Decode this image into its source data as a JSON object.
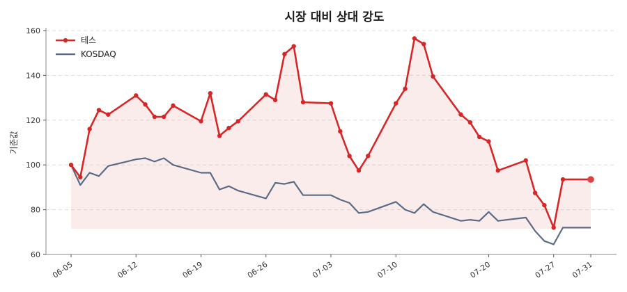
{
  "chart_data": {
    "type": "line",
    "title": "시장 대비 상대 강도",
    "xlabel": "",
    "ylabel": "기준값",
    "ylim": [
      60,
      160
    ],
    "yticks": [
      60,
      80,
      100,
      120,
      140,
      160
    ],
    "grid": "horizontal-dashed",
    "legend": "top-left",
    "x": [
      "06-05",
      "06-06",
      "06-07",
      "06-08",
      "06-09",
      "06-10",
      "06-11",
      "06-12",
      "06-13",
      "06-14",
      "06-15",
      "06-16",
      "06-17",
      "06-18",
      "06-19",
      "06-20",
      "06-21",
      "06-22",
      "06-23",
      "06-24",
      "06-25",
      "06-26",
      "06-27",
      "06-28",
      "06-29",
      "06-30",
      "07-01",
      "07-02",
      "07-03",
      "07-04",
      "07-05",
      "07-06",
      "07-07",
      "07-08",
      "07-09",
      "07-10",
      "07-11",
      "07-12",
      "07-13",
      "07-14",
      "07-15",
      "07-16",
      "07-17",
      "07-18",
      "07-19",
      "07-20",
      "07-21",
      "07-22",
      "07-23",
      "07-24",
      "07-25",
      "07-26",
      "07-27",
      "07-28",
      "07-29",
      "07-30",
      "07-31"
    ],
    "xtick_labels": [
      "06-05",
      "06-12",
      "06-19",
      "06-26",
      "07-03",
      "07-10",
      "07-20",
      "07-27",
      "07-31"
    ],
    "series": [
      {
        "name": "테스",
        "color": "#d62728",
        "marker": "circle",
        "fill_baseline": 71.5,
        "x": [
          "06-05",
          "06-06",
          "06-07",
          "06-08",
          "06-09",
          "06-12",
          "06-13",
          "06-14",
          "06-15",
          "06-16",
          "06-19",
          "06-20",
          "06-21",
          "06-22",
          "06-23",
          "06-26",
          "06-27",
          "06-28",
          "06-29",
          "06-30",
          "07-03",
          "07-04",
          "07-05",
          "07-06",
          "07-07",
          "07-10",
          "07-11",
          "07-12",
          "07-13",
          "07-14",
          "07-17",
          "07-18",
          "07-19",
          "07-20",
          "07-21",
          "07-24",
          "07-25",
          "07-26",
          "07-27",
          "07-28",
          "07-31"
        ],
        "values": [
          100,
          94.5,
          116,
          124.5,
          122.5,
          131,
          127,
          121.5,
          121.5,
          126.5,
          119.5,
          132,
          113,
          116.5,
          119.5,
          131.5,
          129,
          149.5,
          153,
          128,
          127.5,
          115,
          104,
          97.5,
          104,
          127.5,
          134,
          156.5,
          154,
          139.5,
          122.5,
          119,
          112.5,
          110.5,
          97.5,
          102,
          87.5,
          82,
          72,
          93.5,
          93.5
        ]
      },
      {
        "name": "KOSDAQ",
        "color": "#5c6b84",
        "marker": "none",
        "x": [
          "06-05",
          "06-06",
          "06-07",
          "06-08",
          "06-09",
          "06-12",
          "06-13",
          "06-14",
          "06-15",
          "06-16",
          "06-19",
          "06-20",
          "06-21",
          "06-22",
          "06-23",
          "06-26",
          "06-27",
          "06-28",
          "06-29",
          "06-30",
          "07-03",
          "07-04",
          "07-05",
          "07-06",
          "07-07",
          "07-10",
          "07-11",
          "07-12",
          "07-13",
          "07-14",
          "07-17",
          "07-18",
          "07-19",
          "07-20",
          "07-21",
          "07-24",
          "07-25",
          "07-26",
          "07-27",
          "07-28",
          "07-31"
        ],
        "values": [
          100,
          91,
          96.5,
          95,
          99.5,
          102.5,
          103,
          101.5,
          103,
          100,
          96.5,
          96.5,
          89,
          90.5,
          88.5,
          85,
          92,
          91.5,
          92.5,
          86.5,
          86.5,
          84.5,
          83,
          78.5,
          79,
          83.5,
          80,
          78.5,
          82.5,
          79,
          75,
          75.5,
          75,
          79,
          75,
          76.5,
          70.5,
          66,
          64.5,
          72,
          72
        ]
      }
    ]
  }
}
